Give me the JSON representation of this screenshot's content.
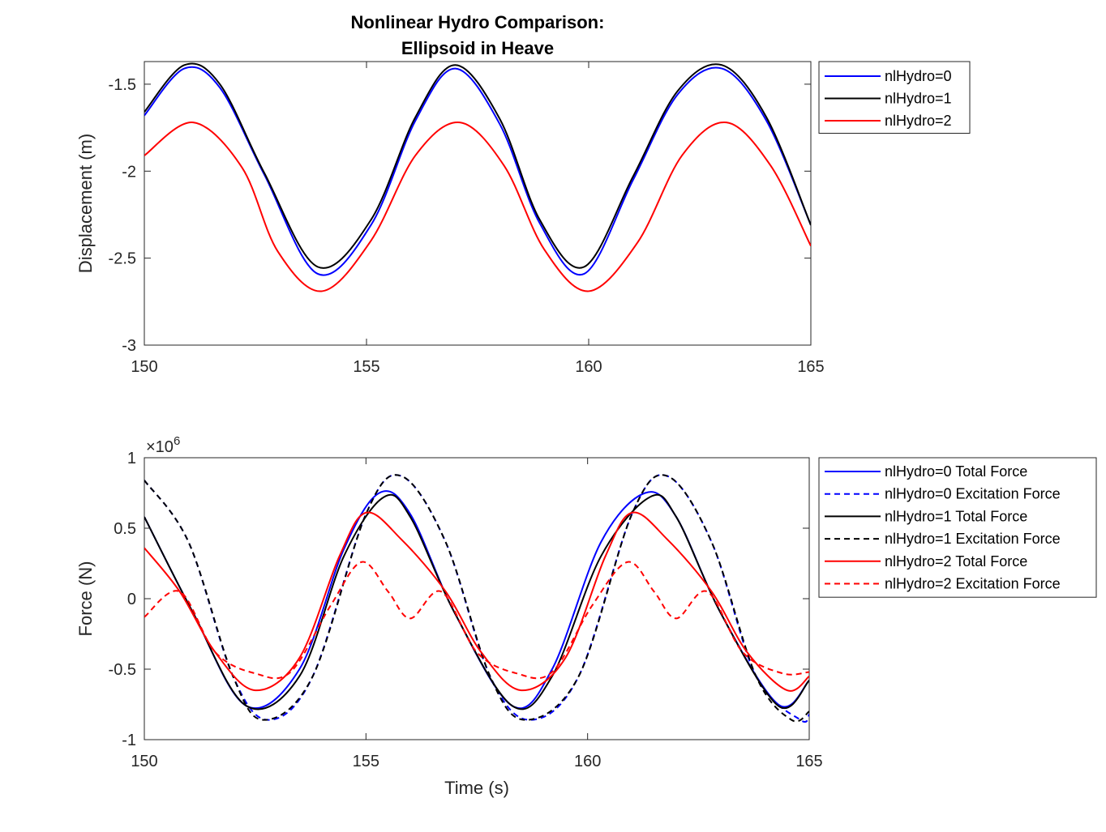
{
  "figure": {
    "title_line1": "Nonlinear Hydro Comparison:",
    "title_line2": "Ellipsoid in Heave"
  },
  "colors": {
    "blue": "#0000ff",
    "black": "#000000",
    "red": "#ff0000"
  },
  "chart_data": [
    {
      "type": "line",
      "title": "Nonlinear Hydro Comparison: Ellipsoid in Heave",
      "xlabel": "",
      "ylabel": "Displacement (m)",
      "xlim": [
        150,
        165
      ],
      "ylim": [
        -3,
        -1.37
      ],
      "xticks": [
        150,
        155,
        160,
        165
      ],
      "xtick_labels": [
        "150",
        "155",
        "160",
        "165"
      ],
      "yticks": [
        -3,
        -2.5,
        -2,
        -1.5
      ],
      "ytick_labels": [
        "-3",
        "-2.5",
        "-2",
        "-1.5"
      ],
      "legend_position": "outside-right-top",
      "series": [
        {
          "name": "nlHydro=0",
          "color": "#0000ff",
          "style": "solid",
          "x": [
            150,
            150.9,
            151.7,
            152.7,
            153.9,
            155.1,
            156.1,
            157.0,
            158.0,
            158.9,
            159.9,
            161.0,
            162.0,
            163.0,
            164.0,
            165.0
          ],
          "y": [
            -1.68,
            -1.41,
            -1.52,
            -2.02,
            -2.59,
            -2.31,
            -1.71,
            -1.41,
            -1.73,
            -2.3,
            -2.59,
            -2.05,
            -1.56,
            -1.41,
            -1.71,
            -2.31
          ]
        },
        {
          "name": "nlHydro=1",
          "color": "#000000",
          "style": "solid",
          "x": [
            150,
            150.9,
            151.7,
            152.7,
            153.9,
            155.1,
            156.1,
            157.0,
            158.0,
            158.9,
            159.9,
            161.0,
            162.0,
            163.0,
            164.0,
            165.0
          ],
          "y": [
            -1.66,
            -1.39,
            -1.5,
            -2.01,
            -2.55,
            -2.28,
            -1.69,
            -1.39,
            -1.7,
            -2.28,
            -2.55,
            -2.03,
            -1.54,
            -1.39,
            -1.69,
            -2.31
          ]
        },
        {
          "name": "nlHydro=2",
          "color": "#ff0000",
          "style": "solid",
          "x": [
            150,
            151.1,
            152.2,
            153.0,
            154.0,
            155.1,
            156.1,
            157.1,
            158.1,
            159.0,
            160.0,
            161.1,
            162.1,
            163.1,
            164.1,
            165.0
          ],
          "y": [
            -1.91,
            -1.72,
            -1.98,
            -2.46,
            -2.69,
            -2.4,
            -1.91,
            -1.72,
            -1.97,
            -2.45,
            -2.69,
            -2.41,
            -1.91,
            -1.72,
            -1.97,
            -2.43
          ]
        }
      ]
    },
    {
      "type": "line",
      "title": "",
      "xlabel": "Time (s)",
      "ylabel": "Force (N)",
      "xlim": [
        150,
        165
      ],
      "ylim": [
        -1,
        1
      ],
      "scale_factor_label": "×10",
      "scale_factor_exponent": "6",
      "xticks": [
        150,
        155,
        160,
        165
      ],
      "xtick_labels": [
        "150",
        "155",
        "160",
        "165"
      ],
      "yticks": [
        -1,
        -0.5,
        0,
        0.5,
        1
      ],
      "ytick_labels": [
        "-1",
        "-0.5",
        "0",
        "0.5",
        "1"
      ],
      "legend_position": "outside-right-top",
      "series": [
        {
          "name": "nlHydro=0 Total Force",
          "color": "#0000ff",
          "style": "solid",
          "x": [
            150,
            151.1,
            152.3,
            153.5,
            154.5,
            155.3,
            156.0,
            157.0,
            158.3,
            159.2,
            160.3,
            161.3,
            162.0,
            163.0,
            164.3,
            165.0
          ],
          "y": [
            0.58,
            -0.1,
            -0.76,
            -0.5,
            0.35,
            0.75,
            0.6,
            -0.1,
            -0.76,
            -0.5,
            0.4,
            0.75,
            0.58,
            -0.1,
            -0.75,
            -0.58
          ]
        },
        {
          "name": "nlHydro=0 Excitation Force",
          "color": "#0000ff",
          "style": "dashed",
          "x": [
            150,
            151.0,
            152.0,
            152.8,
            153.8,
            155.0,
            155.8,
            156.8,
            157.8,
            158.7,
            159.8,
            161.0,
            161.8,
            162.8,
            163.8,
            164.8,
            165.0
          ],
          "y": [
            0.84,
            0.4,
            -0.55,
            -0.86,
            -0.55,
            0.6,
            0.87,
            0.4,
            -0.55,
            -0.86,
            -0.55,
            0.6,
            0.87,
            0.4,
            -0.55,
            -0.86,
            -0.82
          ]
        },
        {
          "name": "nlHydro=1 Total Force",
          "color": "#000000",
          "style": "solid",
          "x": [
            150,
            151.1,
            152.3,
            153.5,
            154.5,
            155.4,
            156.0,
            157.0,
            158.3,
            159.2,
            160.3,
            161.4,
            162.0,
            163.0,
            164.3,
            165.0
          ],
          "y": [
            0.58,
            -0.1,
            -0.76,
            -0.55,
            0.3,
            0.72,
            0.58,
            -0.1,
            -0.76,
            -0.55,
            0.3,
            0.72,
            0.58,
            -0.1,
            -0.76,
            -0.58
          ]
        },
        {
          "name": "nlHydro=1 Excitation Force",
          "color": "#000000",
          "style": "dashed",
          "x": [
            150,
            151.0,
            152.0,
            152.7,
            153.8,
            155.0,
            155.8,
            156.8,
            157.8,
            158.6,
            159.8,
            161.0,
            161.8,
            162.8,
            163.8,
            164.6,
            165.0
          ],
          "y": [
            0.84,
            0.4,
            -0.55,
            -0.86,
            -0.55,
            0.6,
            0.87,
            0.4,
            -0.55,
            -0.86,
            -0.55,
            0.6,
            0.87,
            0.4,
            -0.55,
            -0.86,
            -0.8
          ]
        },
        {
          "name": "nlHydro=2 Total Force",
          "color": "#ff0000",
          "style": "solid",
          "x": [
            150,
            150.8,
            151.6,
            152.5,
            153.5,
            154.4,
            155.0,
            155.8,
            156.8,
            157.6,
            158.5,
            159.5,
            160.4,
            161.0,
            161.8,
            162.8,
            163.6,
            164.5,
            165.0
          ],
          "y": [
            0.36,
            0.05,
            -0.38,
            -0.65,
            -0.42,
            0.3,
            0.61,
            0.42,
            0.05,
            -0.38,
            -0.65,
            -0.42,
            0.3,
            0.61,
            0.42,
            0.05,
            -0.38,
            -0.65,
            -0.55
          ]
        },
        {
          "name": "nlHydro=2 Excitation Force",
          "color": "#ff0000",
          "style": "dashed",
          "x": [
            150,
            150.8,
            151.6,
            152.5,
            153.3,
            154.2,
            154.9,
            155.5,
            156.0,
            156.7,
            157.5,
            158.4,
            159.2,
            160.1,
            160.9,
            161.5,
            162.0,
            162.7,
            163.5,
            164.4,
            165.0
          ],
          "y": [
            -0.13,
            0.05,
            -0.38,
            -0.53,
            -0.52,
            -0.05,
            0.26,
            0.05,
            -0.14,
            0.05,
            -0.38,
            -0.53,
            -0.52,
            -0.05,
            0.26,
            0.05,
            -0.14,
            0.05,
            -0.38,
            -0.53,
            -0.52
          ]
        }
      ]
    }
  ]
}
